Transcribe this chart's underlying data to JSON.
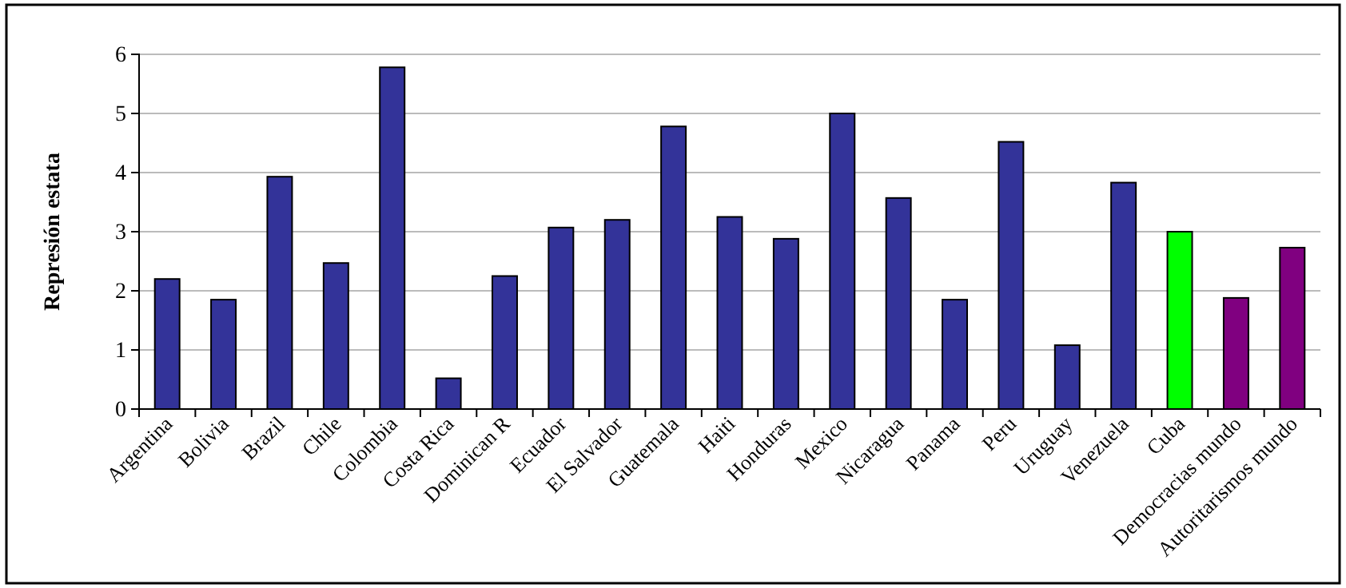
{
  "chart_data": {
    "type": "bar",
    "ylabel": "Represión estata",
    "categories": [
      "Argentina",
      "Bolivia",
      "Brazil",
      "Chile",
      "Colombia",
      "Costa Rica",
      "Dominican R",
      "Ecuador",
      "El Salvador",
      "Guatemala",
      "Haiti",
      "Honduras",
      "Mexico",
      "Nicaragua",
      "Panama",
      "Peru",
      "Uruguay",
      "Venezuela",
      "Cuba",
      "Democracias mundo",
      "Autoritarismos mundo"
    ],
    "values": [
      2.2,
      1.85,
      3.93,
      2.47,
      5.78,
      0.52,
      2.25,
      3.07,
      3.2,
      4.78,
      3.25,
      2.88,
      5.0,
      3.57,
      1.85,
      4.52,
      1.08,
      3.83,
      3.0,
      1.88,
      2.73
    ],
    "colors": [
      "#333399",
      "#333399",
      "#333399",
      "#333399",
      "#333399",
      "#333399",
      "#333399",
      "#333399",
      "#333399",
      "#333399",
      "#333399",
      "#333399",
      "#333399",
      "#333399",
      "#333399",
      "#333399",
      "#333399",
      "#333399",
      "#00ff00",
      "#800080",
      "#800080"
    ],
    "ylim": [
      0,
      6
    ],
    "yticks": [
      0,
      1,
      2,
      3,
      4,
      5,
      6
    ],
    "grid": "y"
  }
}
